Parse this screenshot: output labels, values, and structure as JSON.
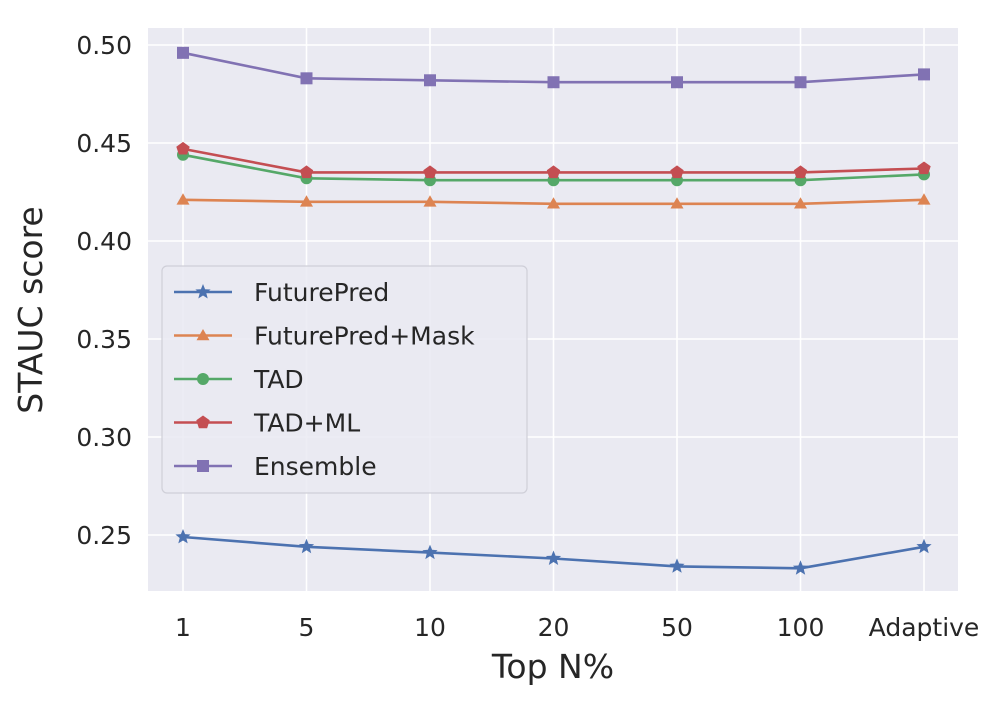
{
  "chart_data": {
    "type": "line",
    "xlabel": "Top N%",
    "ylabel": "STAUC score",
    "categories": [
      "1",
      "5",
      "10",
      "20",
      "50",
      "100",
      "Adaptive"
    ],
    "ylim": [
      0.22,
      0.505
    ],
    "yticks": [
      "0.25",
      "0.30",
      "0.35",
      "0.40",
      "0.45",
      "0.50"
    ],
    "grid": true,
    "legend_position": "center-left",
    "background": "#eaeaf2",
    "series": [
      {
        "name": "FuturePred",
        "marker": "star",
        "color": "#4c72b0",
        "values": [
          0.249,
          0.244,
          0.241,
          0.238,
          0.234,
          0.233,
          0.244
        ]
      },
      {
        "name": "FuturePred+Mask",
        "marker": "triangle",
        "color": "#dd8452",
        "values": [
          0.421,
          0.42,
          0.42,
          0.419,
          0.419,
          0.419,
          0.421
        ]
      },
      {
        "name": "TAD",
        "marker": "circle",
        "color": "#55a868",
        "values": [
          0.444,
          0.432,
          0.431,
          0.431,
          0.431,
          0.431,
          0.434
        ]
      },
      {
        "name": "TAD+ML",
        "marker": "pentagon",
        "color": "#c44e52",
        "values": [
          0.447,
          0.435,
          0.435,
          0.435,
          0.435,
          0.435,
          0.437
        ]
      },
      {
        "name": "Ensemble",
        "marker": "square",
        "color": "#8172b3",
        "values": [
          0.496,
          0.483,
          0.482,
          0.481,
          0.481,
          0.481,
          0.485
        ]
      }
    ]
  }
}
